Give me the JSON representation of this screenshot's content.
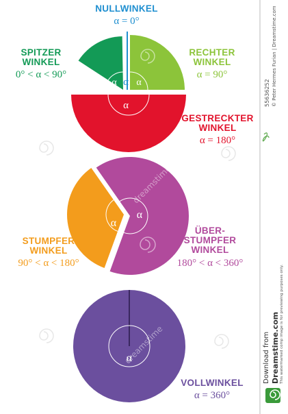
{
  "colors": {
    "null": "#1f8fd0",
    "spitz": "#139a56",
    "recht": "#8cc43a",
    "gestreckt": "#e2132c",
    "stumpf": "#f39c1c",
    "ueber": "#b14a9c",
    "voll": "#6b4f9e"
  },
  "labels": {
    "nullwinkel": {
      "title": "NULLWINKEL",
      "formula": "α = 0°"
    },
    "spitzer": {
      "title1": "SPITZER",
      "title2": "WINKEL",
      "formula": "0° <  α  < 90°"
    },
    "rechter": {
      "title1": "RECHTER",
      "title2": "WINKEL",
      "formula": "α = 90°"
    },
    "gestreckter": {
      "title1": "GESTRECKTER",
      "title2": "WINKEL",
      "formula": "α = 180°"
    },
    "stumpfer": {
      "title1": "STUMPFER",
      "title2": "WINKEL",
      "formula": "90° <  α  < 180°"
    },
    "ueberstumpfer": {
      "title1": "ÜBER-",
      "title2": "STUMPFER",
      "title3": "WINKEL",
      "formula": "180° <  α  < 360°"
    },
    "vollwinkel": {
      "title": "VOLLWINKEL",
      "formula": "α = 360°"
    }
  },
  "alpha": "α",
  "watermark": "dreamstime",
  "sidebar": {
    "id": "55636252",
    "credit": "© Peter Hermes Furian | Dreamstime.com",
    "download": "Download from",
    "site": "Dreamstime.com",
    "notice": "This watermarked comp image is for previewing purposes only."
  }
}
